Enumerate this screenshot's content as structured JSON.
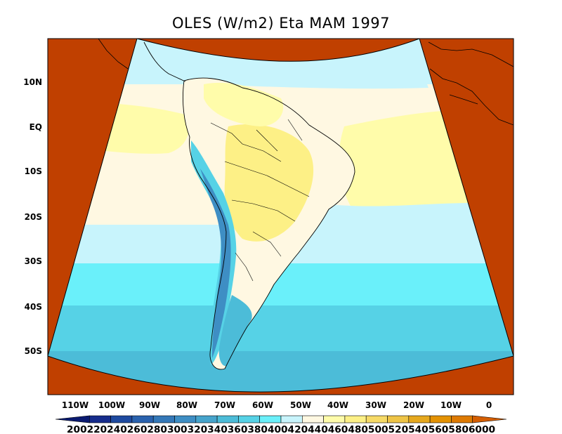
{
  "map": {
    "title": "OLES (W/m2) Eta MAM 1997",
    "lat_ticks": [
      "10N",
      "EQ",
      "10S",
      "20S",
      "30S",
      "40S",
      "50S"
    ],
    "lon_ticks": [
      "110W",
      "100W",
      "90W",
      "80W",
      "70W",
      "60W",
      "50W",
      "40W",
      "30W",
      "20W",
      "10W",
      "0"
    ],
    "outside_domain_color": "#c04000",
    "colorbar": {
      "levels": [
        200,
        220,
        240,
        260,
        280,
        300,
        320,
        340,
        360,
        380,
        400,
        420,
        440,
        460,
        480,
        500,
        520,
        540,
        560,
        580,
        600
      ],
      "labels_text": "2002202402602803003203403603804004204404604805005205405605806000",
      "colors": [
        "#0a1a70",
        "#162c8c",
        "#1e4aa0",
        "#2a62ae",
        "#3478b8",
        "#3e8ec4",
        "#46a4cc",
        "#4cbcd8",
        "#56d2e6",
        "#6af0fa",
        "#c8f4fc",
        "#fff8e2",
        "#fffcaa",
        "#fdf086",
        "#f6da66",
        "#eec446",
        "#e6a81e",
        "#e49202",
        "#de7a02",
        "#d45e02"
      ]
    }
  }
}
